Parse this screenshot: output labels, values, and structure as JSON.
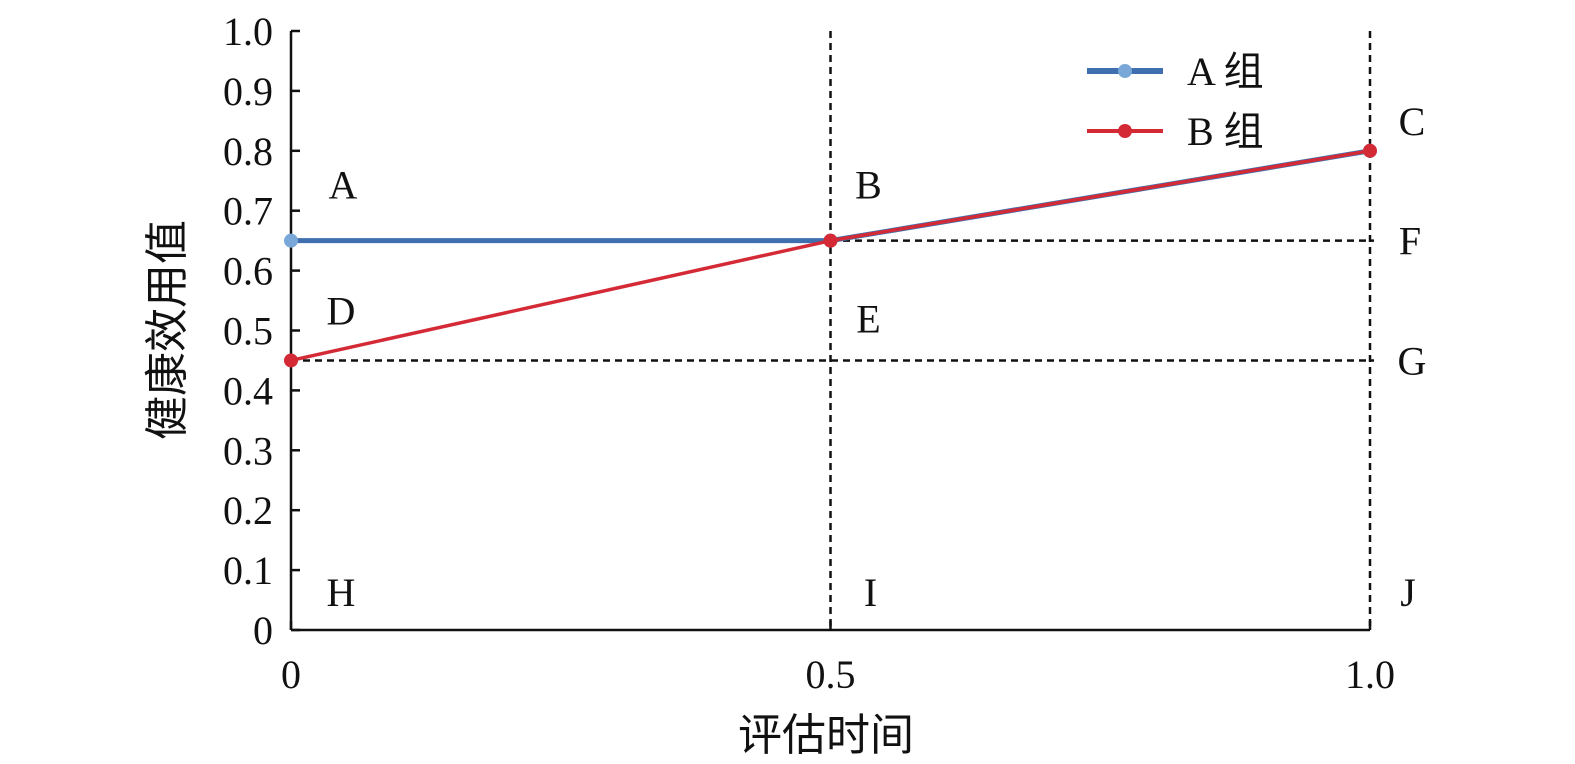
{
  "chart_data": {
    "type": "line",
    "xlabel": "评估时间",
    "ylabel": "健康效用值",
    "xlim": [
      0,
      1.0
    ],
    "ylim": [
      0,
      1.0
    ],
    "x_ticks": [
      "0",
      "0.5",
      "1.0"
    ],
    "x_tick_values": [
      0,
      0.5,
      1.0
    ],
    "y_ticks": [
      "0",
      "0.1",
      "0.2",
      "0.3",
      "0.4",
      "0.5",
      "0.6",
      "0.7",
      "0.8",
      "0.9",
      "1.0"
    ],
    "y_tick_values": [
      0,
      0.1,
      0.2,
      0.3,
      0.4,
      0.5,
      0.6,
      0.7,
      0.8,
      0.9,
      1.0
    ],
    "legend_position": "top-right",
    "grid": false,
    "series": [
      {
        "name": "A 组",
        "color": "#3f6fae",
        "marker_color": "#79a8d8",
        "points": [
          {
            "x": 0,
            "y": 0.65
          },
          {
            "x": 0.5,
            "y": 0.65
          },
          {
            "x": 1.0,
            "y": 0.8
          }
        ]
      },
      {
        "name": "B 组",
        "color": "#d42a36",
        "marker_color": "#d42a36",
        "points": [
          {
            "x": 0,
            "y": 0.45
          },
          {
            "x": 0.5,
            "y": 0.65
          },
          {
            "x": 1.0,
            "y": 0.8
          }
        ]
      }
    ],
    "reference_lines": [
      {
        "orientation": "vertical",
        "value": 0.5
      },
      {
        "orientation": "vertical",
        "value": 1.0
      },
      {
        "orientation": "horizontal",
        "value": 0.65
      },
      {
        "orientation": "horizontal",
        "value": 0.45
      }
    ],
    "annotations": [
      {
        "label": "A",
        "x": 0,
        "y": 0.65
      },
      {
        "label": "B",
        "x": 0.5,
        "y": 0.65
      },
      {
        "label": "C",
        "x": 1.0,
        "y": 0.8
      },
      {
        "label": "D",
        "x": 0,
        "y": 0.45
      },
      {
        "label": "E",
        "x": 0.5,
        "y": 0.45
      },
      {
        "label": "F",
        "x": 1.0,
        "y": 0.65
      },
      {
        "label": "G",
        "x": 1.0,
        "y": 0.45
      },
      {
        "label": "H",
        "x": 0,
        "y": 0
      },
      {
        "label": "I",
        "x": 0.5,
        "y": 0
      },
      {
        "label": "J",
        "x": 1.0,
        "y": 0
      }
    ]
  }
}
